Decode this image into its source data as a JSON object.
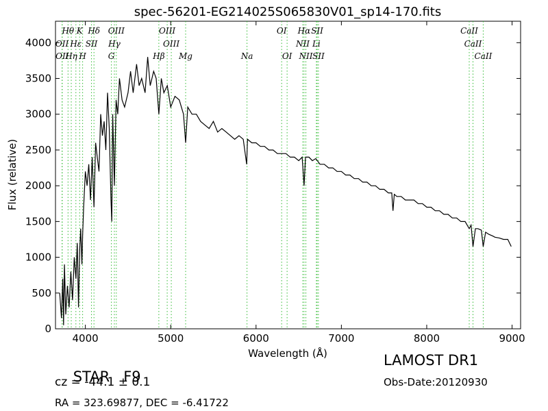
{
  "chart_data": {
    "type": "line",
    "title": "spec-56201-EG214025S065830V01_sp14-170.fits",
    "xlabel": "Wavelength (Å)",
    "ylabel": "Flux (relative)",
    "xlim": [
      3650,
      9100
    ],
    "ylim": [
      0,
      4300
    ],
    "xticks": [
      4000,
      5000,
      6000,
      7000,
      8000,
      9000
    ],
    "yticks": [
      0,
      500,
      1000,
      1500,
      2000,
      2500,
      3000,
      3500,
      4000
    ],
    "grid": false,
    "legend": "none",
    "line_color": "#000000",
    "marker_color": "#33bb33",
    "spectrum": {
      "x": [
        3700,
        3720,
        3735,
        3745,
        3755,
        3770,
        3790,
        3810,
        3830,
        3850,
        3870,
        3890,
        3905,
        3920,
        3933,
        3945,
        3960,
        3968,
        3980,
        4000,
        4020,
        4040,
        4060,
        4080,
        4101,
        4120,
        4140,
        4160,
        4180,
        4200,
        4220,
        4240,
        4260,
        4280,
        4300,
        4310,
        4320,
        4340,
        4360,
        4380,
        4400,
        4430,
        4460,
        4500,
        4530,
        4560,
        4600,
        4630,
        4660,
        4700,
        4730,
        4760,
        4800,
        4830,
        4861,
        4890,
        4920,
        4960,
        5000,
        5050,
        5100,
        5150,
        5175,
        5200,
        5250,
        5300,
        5350,
        5400,
        5450,
        5500,
        5550,
        5600,
        5650,
        5700,
        5750,
        5800,
        5850,
        5890,
        5900,
        5950,
        6000,
        6050,
        6100,
        6150,
        6200,
        6250,
        6300,
        6350,
        6400,
        6450,
        6500,
        6540,
        6563,
        6580,
        6620,
        6660,
        6700,
        6750,
        6800,
        6850,
        6900,
        6950,
        7000,
        7050,
        7100,
        7150,
        7200,
        7250,
        7300,
        7350,
        7400,
        7450,
        7500,
        7550,
        7590,
        7605,
        7620,
        7650,
        7700,
        7750,
        7800,
        7850,
        7900,
        7950,
        8000,
        8050,
        8100,
        8150,
        8200,
        8250,
        8300,
        8350,
        8400,
        8450,
        8498,
        8520,
        8542,
        8570,
        8600,
        8640,
        8662,
        8690,
        8730,
        8770,
        8800,
        8850,
        8900,
        8950,
        8990
      ],
      "y": [
        500,
        150,
        700,
        50,
        900,
        200,
        600,
        300,
        800,
        400,
        1000,
        700,
        1200,
        300,
        1100,
        1400,
        900,
        1300,
        1700,
        2200,
        2000,
        2300,
        1800,
        2400,
        1700,
        2600,
        2400,
        2200,
        3000,
        2700,
        2900,
        2500,
        3300,
        2800,
        1800,
        1500,
        3000,
        2000,
        3200,
        3000,
        3500,
        3200,
        3100,
        3300,
        3600,
        3300,
        3700,
        3400,
        3500,
        3300,
        3800,
        3400,
        3600,
        3500,
        3000,
        3500,
        3300,
        3400,
        3100,
        3250,
        3200,
        3000,
        2600,
        3100,
        3000,
        3000,
        2900,
        2850,
        2800,
        2900,
        2750,
        2800,
        2750,
        2700,
        2650,
        2700,
        2650,
        2300,
        2650,
        2600,
        2600,
        2550,
        2550,
        2500,
        2500,
        2450,
        2450,
        2450,
        2400,
        2400,
        2350,
        2400,
        2000,
        2400,
        2400,
        2350,
        2380,
        2300,
        2300,
        2250,
        2250,
        2200,
        2200,
        2150,
        2150,
        2100,
        2100,
        2050,
        2050,
        2000,
        2000,
        1950,
        1950,
        1900,
        1900,
        1650,
        1880,
        1850,
        1850,
        1800,
        1800,
        1800,
        1750,
        1750,
        1700,
        1700,
        1650,
        1650,
        1600,
        1600,
        1550,
        1550,
        1500,
        1500,
        1400,
        1450,
        1150,
        1400,
        1400,
        1380,
        1150,
        1350,
        1320,
        1300,
        1280,
        1270,
        1250,
        1250,
        1150
      ]
    },
    "lines": [
      {
        "label": "Hθ",
        "x": 3797,
        "row": 0
      },
      {
        "label": "K",
        "x": 3933,
        "row": 0
      },
      {
        "label": "Hδ",
        "x": 4101,
        "row": 0
      },
      {
        "label": "OIII",
        "x": 4363,
        "row": 0
      },
      {
        "label": "OIII",
        "x": 4959,
        "row": 0
      },
      {
        "label": "OI",
        "x": 6300,
        "row": 0
      },
      {
        "label": "Hα",
        "x": 6563,
        "row": 0
      },
      {
        "label": "SII",
        "x": 6716,
        "row": 0
      },
      {
        "label": "CaII",
        "x": 8498,
        "row": 0
      },
      {
        "label": "OII",
        "x": 3727,
        "row": 1
      },
      {
        "label": "Hε",
        "x": 3889,
        "row": 1
      },
      {
        "label": "SII",
        "x": 4072,
        "row": 1
      },
      {
        "label": "Hγ",
        "x": 4340,
        "row": 1
      },
      {
        "label": "OIII",
        "x": 5007,
        "row": 1
      },
      {
        "label": "NII",
        "x": 6548,
        "row": 1
      },
      {
        "label": "Li",
        "x": 6707,
        "row": 1
      },
      {
        "label": "CaII",
        "x": 8542,
        "row": 1
      },
      {
        "label": "OII",
        "x": 3729,
        "row": 2
      },
      {
        "label": "Hη",
        "x": 3835,
        "row": 2
      },
      {
        "label": "H",
        "x": 3968,
        "row": 2
      },
      {
        "label": "G",
        "x": 4305,
        "row": 2
      },
      {
        "label": "Hβ",
        "x": 4861,
        "row": 2
      },
      {
        "label": "Mg",
        "x": 5175,
        "row": 2
      },
      {
        "label": "Na",
        "x": 5894,
        "row": 2
      },
      {
        "label": "OI",
        "x": 6364,
        "row": 2
      },
      {
        "label": "NII",
        "x": 6584,
        "row": 2
      },
      {
        "label": "SII",
        "x": 6731,
        "row": 2
      },
      {
        "label": "CaII",
        "x": 8662,
        "row": 2
      }
    ]
  },
  "info": {
    "class_label": "STAR",
    "subclass": "F9",
    "cz_text": "cz = -44.1 ± 0.1",
    "radec_text": "RA = 323.69877, DEC = -6.41722",
    "survey": "LAMOST DR1",
    "obs_date": "Obs-Date:20120930"
  }
}
